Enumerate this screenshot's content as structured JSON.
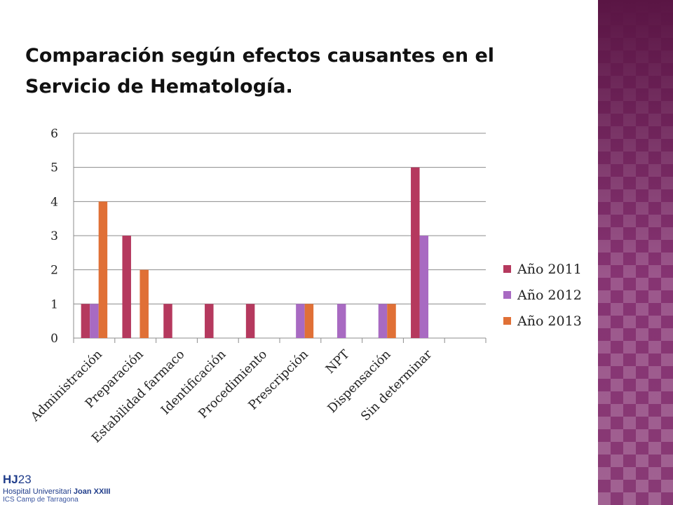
{
  "title_lines": [
    "Comparación según efectos causantes en el",
    "Servicio de Hematología."
  ],
  "logo": {
    "mark_letters": "HJ",
    "mark_number": "23",
    "line1_prefix": "Hospital Universitari ",
    "line1_bold": "Joan XXIII",
    "line2": "ICS Camp de Tarragona"
  },
  "colors": {
    "series_2011": "#b5395e",
    "series_2012": "#a86ac2",
    "series_2013": "#e07036",
    "side_band": "#7a2a63",
    "logo_blue": "#1f3c8a"
  },
  "chart_data": {
    "type": "bar",
    "title": "",
    "xlabel": "",
    "ylabel": "",
    "ylim": [
      0,
      6
    ],
    "yticks": [
      0,
      1,
      2,
      3,
      4,
      5,
      6
    ],
    "grid": "horizontal",
    "legend_position": "right",
    "categories": [
      "Administración",
      "Preparación",
      "Estabilidad farmaco",
      "Identificación",
      "Procedimiento",
      "Prescripción",
      "NPT",
      "Dispensación",
      "Sin determinar",
      ""
    ],
    "series": [
      {
        "name": "Año 2011",
        "color": "#b5395e",
        "values": [
          1,
          3,
          1,
          1,
          1,
          0,
          0,
          0,
          5,
          0
        ]
      },
      {
        "name": "Año 2012",
        "color": "#a86ac2",
        "values": [
          1,
          0,
          0,
          0,
          0,
          1,
          1,
          1,
          3,
          0
        ]
      },
      {
        "name": "Año 2013",
        "color": "#e07036",
        "values": [
          4,
          2,
          0,
          0,
          0,
          1,
          0,
          1,
          0,
          0
        ]
      }
    ]
  }
}
